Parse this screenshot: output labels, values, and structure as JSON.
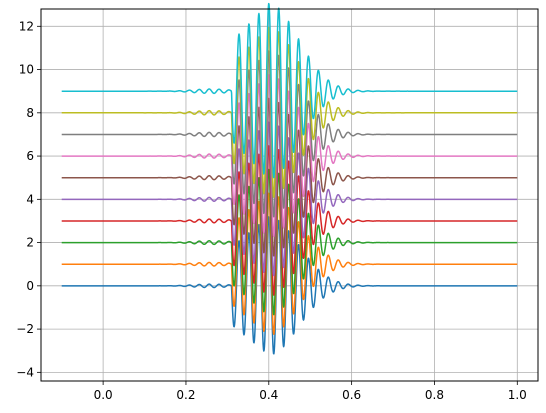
{
  "chart_data": {
    "type": "line",
    "title": "",
    "xlabel": "",
    "ylabel": "",
    "xlim": [
      -0.15,
      1.05
    ],
    "ylim": [
      -4.4,
      12.8
    ],
    "grid": true,
    "legend": "none",
    "x_ticks": [
      "0.0",
      "0.2",
      "0.4",
      "0.6",
      "0.8",
      "1.0"
    ],
    "y_ticks": [
      "−4",
      "−2",
      "0",
      "2",
      "4",
      "6",
      "8",
      "10",
      "12"
    ],
    "x_tick_values": [
      0.0,
      0.2,
      0.4,
      0.6,
      0.8,
      1.0
    ],
    "y_tick_values": [
      -4,
      -2,
      0,
      2,
      4,
      6,
      8,
      10,
      12
    ],
    "x_range": [
      -0.1,
      1.0
    ],
    "wave_packet": {
      "onset": 0.31,
      "center": 0.4,
      "peak_amplitude": 3.2,
      "period": 0.024,
      "decay_end": 0.6
    },
    "series": [
      {
        "offset": 0,
        "color": "#1f77b4"
      },
      {
        "offset": 1,
        "color": "#ff7f0e"
      },
      {
        "offset": 2,
        "color": "#2ca02c"
      },
      {
        "offset": 3,
        "color": "#d62728"
      },
      {
        "offset": 4,
        "color": "#9467bd"
      },
      {
        "offset": 5,
        "color": "#8c564b"
      },
      {
        "offset": 6,
        "color": "#e377c2"
      },
      {
        "offset": 7,
        "color": "#7f7f7f"
      },
      {
        "offset": 8,
        "color": "#bcbd22"
      },
      {
        "offset": 9,
        "color": "#17becf"
      }
    ]
  }
}
